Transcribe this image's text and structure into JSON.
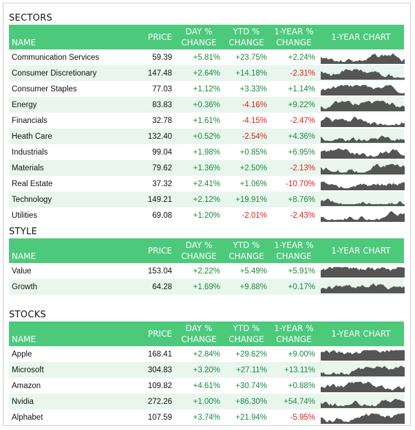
{
  "headers": {
    "name": "NAME",
    "price": "PRICE",
    "day1": "DAY %",
    "day2": "CHANGE",
    "ytd1": "YTD %",
    "ytd2": "CHANGE",
    "yr1": "1-YEAR %",
    "yr2": "CHANGE",
    "chart": "1-YEAR CHART"
  },
  "colors": {
    "header_bg": "#4dc97c",
    "positive": "#1a8a3c",
    "negative": "#e0201b",
    "row_alt": "#e8f6ed",
    "spark": "#555555"
  },
  "sections": [
    {
      "title": "SECTORS",
      "rows": [
        {
          "name": "Communication Services",
          "price": "59.39",
          "day": "+5.81%",
          "ytd": "+23.75%",
          "yr": "+2.24%"
        },
        {
          "name": "Consumer Discretionary",
          "price": "147.48",
          "day": "+2.64%",
          "ytd": "+14.18%",
          "yr": "-2.31%"
        },
        {
          "name": "Consumer Staples",
          "price": "77.03",
          "day": "+1.12%",
          "ytd": "+3.33%",
          "yr": "+1.14%"
        },
        {
          "name": "Energy",
          "price": "83.83",
          "day": "+0.36%",
          "ytd": "-4.16%",
          "yr": "+9.22%"
        },
        {
          "name": "Financials",
          "price": "32.78",
          "day": "+1.61%",
          "ytd": "-4.15%",
          "yr": "-2.47%"
        },
        {
          "name": "Heath Care",
          "price": "132.40",
          "day": "+0.52%",
          "ytd": "-2.54%",
          "yr": "+4.36%"
        },
        {
          "name": "Industrials",
          "price": "99.04",
          "day": "+1.98%",
          "ytd": "+0.85%",
          "yr": "+6.95%"
        },
        {
          "name": "Materials",
          "price": "79.62",
          "day": "+1.36%",
          "ytd": "+2.50%",
          "yr": "-2.13%"
        },
        {
          "name": "Real Estate",
          "price": "37.32",
          "day": "+2.41%",
          "ytd": "+1.06%",
          "yr": "-10.70%"
        },
        {
          "name": "Technology",
          "price": "149.21",
          "day": "+2.12%",
          "ytd": "+19.91%",
          "yr": "+8.76%"
        },
        {
          "name": "Utilities",
          "price": "69.08",
          "day": "+1.20%",
          "ytd": "-2.01%",
          "yr": "-2.43%"
        }
      ]
    },
    {
      "title": "STYLE",
      "rows": [
        {
          "name": "Value",
          "price": "153.04",
          "day": "+2.22%",
          "ytd": "+5.49%",
          "yr": "+5.91%"
        },
        {
          "name": "Growth",
          "price": "64.28",
          "day": "+1.69%",
          "ytd": "+9.88%",
          "yr": "+0.17%"
        }
      ]
    },
    {
      "title": "STOCKS",
      "rows": [
        {
          "name": "Apple",
          "price": "168.41",
          "day": "+2.84%",
          "ytd": "+29.62%",
          "yr": "+9.00%"
        },
        {
          "name": "Microsoft",
          "price": "304.83",
          "day": "+3.20%",
          "ytd": "+27.11%",
          "yr": "+13.11%"
        },
        {
          "name": "Amazon",
          "price": "109.82",
          "day": "+4.61%",
          "ytd": "+30.74%",
          "yr": "+0.88%"
        },
        {
          "name": "Nvidia",
          "price": "272.26",
          "day": "+1.00%",
          "ytd": "+86.30%",
          "yr": "+54.74%"
        },
        {
          "name": "Alphabet",
          "price": "107.59",
          "day": "+3.74%",
          "ytd": "+21.94%",
          "yr": "-5.95%"
        }
      ]
    }
  ]
}
